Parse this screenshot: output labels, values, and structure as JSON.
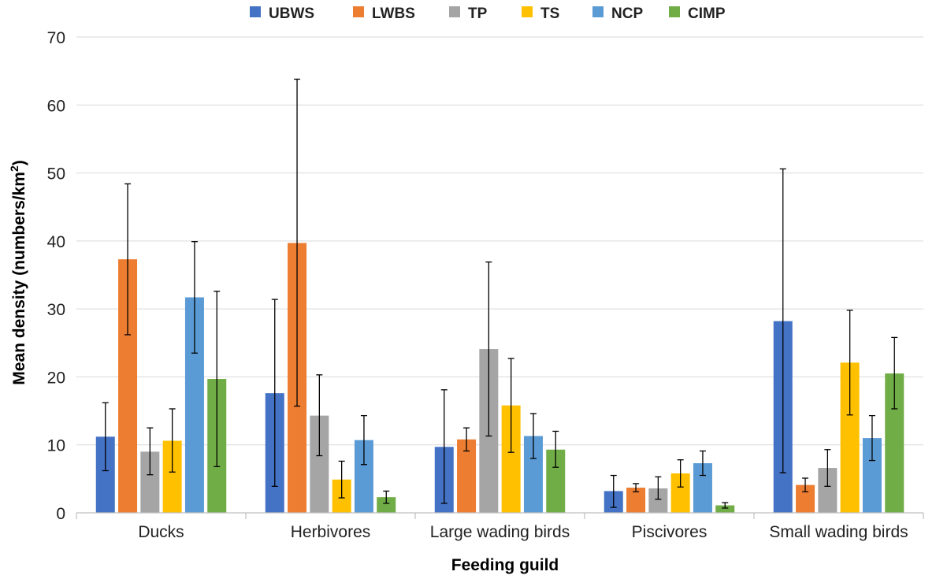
{
  "chart_data": {
    "type": "bar",
    "xlabel": "Feeding guild",
    "ylabel": "Mean density (numbers/km2)",
    "ylabel_main": "Mean density (numbers/km",
    "ylabel_sup": "2",
    "ylabel_close": ")",
    "ylim": [
      0,
      70
    ],
    "yticks": [
      0,
      10,
      20,
      30,
      40,
      50,
      60,
      70
    ],
    "grid": true,
    "legend_position": "top",
    "categories": [
      "Ducks",
      "Herbivores",
      "Large wading birds",
      "Piscivores",
      "Small wading birds"
    ],
    "series": [
      {
        "name": "UBWS",
        "color": "#4472C4",
        "values": [
          11.2,
          17.6,
          9.7,
          3.2,
          28.2
        ],
        "err_low": [
          6.2,
          3.9,
          1.4,
          0.8,
          5.9
        ],
        "err_high": [
          16.2,
          31.4,
          18.1,
          5.5,
          50.6
        ]
      },
      {
        "name": "LWBS",
        "color": "#ED7D31",
        "values": [
          37.3,
          39.7,
          10.8,
          3.7,
          4.1
        ],
        "err_low": [
          26.2,
          15.7,
          9.1,
          3.1,
          3.1
        ],
        "err_high": [
          48.4,
          63.8,
          12.5,
          4.3,
          5.1
        ]
      },
      {
        "name": "TP",
        "color": "#A5A5A5",
        "values": [
          9.0,
          14.3,
          24.1,
          3.6,
          6.6
        ],
        "err_low": [
          5.6,
          8.4,
          11.3,
          2.0,
          3.9
        ],
        "err_high": [
          12.5,
          20.3,
          36.9,
          5.3,
          9.3
        ]
      },
      {
        "name": "TS",
        "color": "#FFC000",
        "values": [
          10.6,
          4.9,
          15.8,
          5.8,
          22.1
        ],
        "err_low": [
          6.0,
          2.2,
          8.9,
          3.8,
          14.4
        ],
        "err_high": [
          15.3,
          7.6,
          22.7,
          7.8,
          29.8
        ]
      },
      {
        "name": "NCP",
        "color": "#5B9BD5",
        "values": [
          31.7,
          10.7,
          11.3,
          7.3,
          11.0
        ],
        "err_low": [
          23.5,
          7.1,
          8.0,
          5.5,
          7.7
        ],
        "err_high": [
          39.9,
          14.3,
          14.6,
          9.1,
          14.3
        ]
      },
      {
        "name": "CIMP",
        "color": "#70AD47",
        "values": [
          19.7,
          2.3,
          9.3,
          1.1,
          20.5
        ],
        "err_low": [
          6.8,
          1.4,
          6.7,
          0.7,
          15.3
        ],
        "err_high": [
          32.6,
          3.2,
          12.0,
          1.5,
          25.8
        ]
      }
    ]
  }
}
